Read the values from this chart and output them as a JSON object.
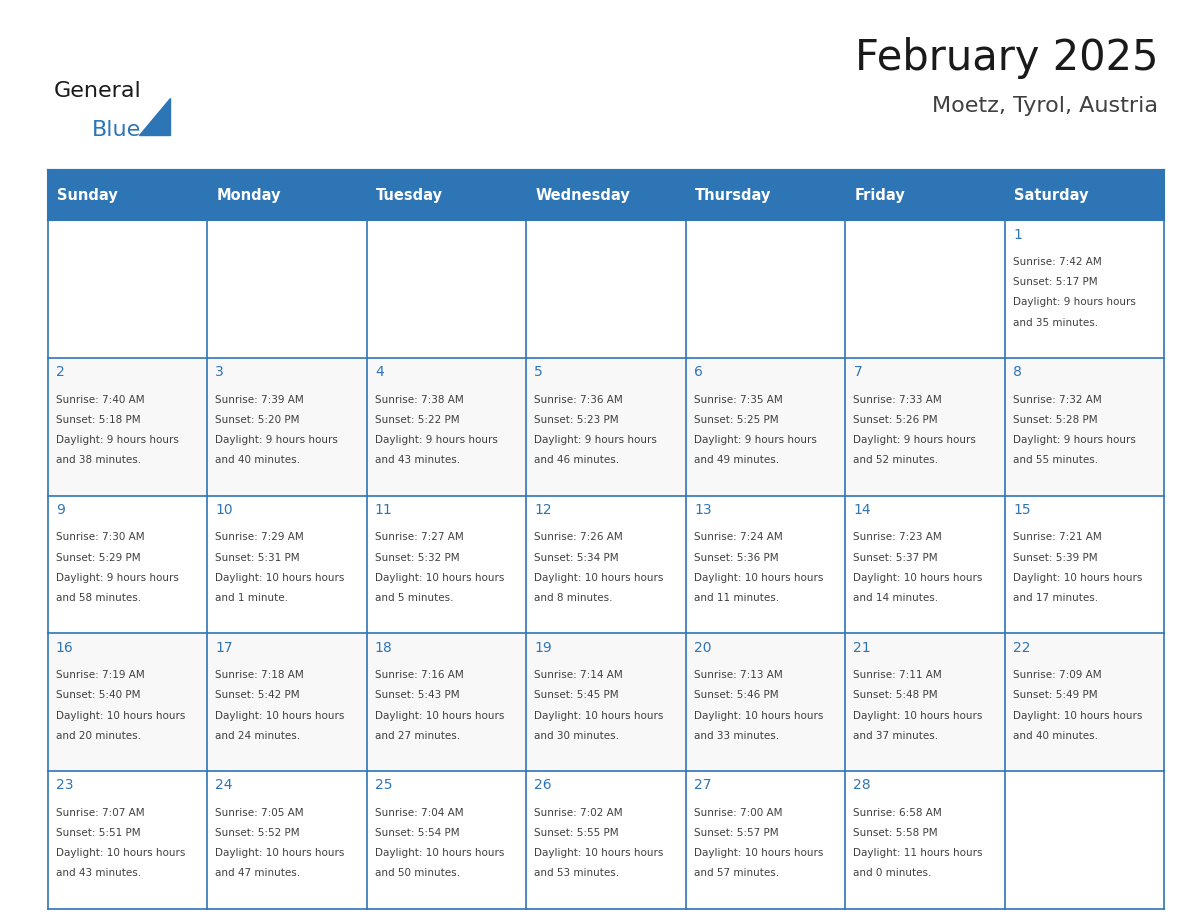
{
  "title": "February 2025",
  "subtitle": "Moetz, Tyrol, Austria",
  "header_bg": "#2E75B6",
  "header_text": "#FFFFFF",
  "cell_bg": "#FFFFFF",
  "alt_cell_bg": "#F2F2F2",
  "border_color": "#2E75B6",
  "text_color": "#404040",
  "day_number_color": "#2E75B6",
  "weekdays": [
    "Sunday",
    "Monday",
    "Tuesday",
    "Wednesday",
    "Thursday",
    "Friday",
    "Saturday"
  ],
  "logo_general_color": "#1a1a1a",
  "logo_blue_color": "#2E75B6",
  "days": [
    {
      "day": 1,
      "col": 6,
      "row": 0,
      "sunrise": "7:42 AM",
      "sunset": "5:17 PM",
      "daylight": "9 hours and 35 minutes."
    },
    {
      "day": 2,
      "col": 0,
      "row": 1,
      "sunrise": "7:40 AM",
      "sunset": "5:18 PM",
      "daylight": "9 hours and 38 minutes."
    },
    {
      "day": 3,
      "col": 1,
      "row": 1,
      "sunrise": "7:39 AM",
      "sunset": "5:20 PM",
      "daylight": "9 hours and 40 minutes."
    },
    {
      "day": 4,
      "col": 2,
      "row": 1,
      "sunrise": "7:38 AM",
      "sunset": "5:22 PM",
      "daylight": "9 hours and 43 minutes."
    },
    {
      "day": 5,
      "col": 3,
      "row": 1,
      "sunrise": "7:36 AM",
      "sunset": "5:23 PM",
      "daylight": "9 hours and 46 minutes."
    },
    {
      "day": 6,
      "col": 4,
      "row": 1,
      "sunrise": "7:35 AM",
      "sunset": "5:25 PM",
      "daylight": "9 hours and 49 minutes."
    },
    {
      "day": 7,
      "col": 5,
      "row": 1,
      "sunrise": "7:33 AM",
      "sunset": "5:26 PM",
      "daylight": "9 hours and 52 minutes."
    },
    {
      "day": 8,
      "col": 6,
      "row": 1,
      "sunrise": "7:32 AM",
      "sunset": "5:28 PM",
      "daylight": "9 hours and 55 minutes."
    },
    {
      "day": 9,
      "col": 0,
      "row": 2,
      "sunrise": "7:30 AM",
      "sunset": "5:29 PM",
      "daylight": "9 hours and 58 minutes."
    },
    {
      "day": 10,
      "col": 1,
      "row": 2,
      "sunrise": "7:29 AM",
      "sunset": "5:31 PM",
      "daylight": "10 hours and 1 minute."
    },
    {
      "day": 11,
      "col": 2,
      "row": 2,
      "sunrise": "7:27 AM",
      "sunset": "5:32 PM",
      "daylight": "10 hours and 5 minutes."
    },
    {
      "day": 12,
      "col": 3,
      "row": 2,
      "sunrise": "7:26 AM",
      "sunset": "5:34 PM",
      "daylight": "10 hours and 8 minutes."
    },
    {
      "day": 13,
      "col": 4,
      "row": 2,
      "sunrise": "7:24 AM",
      "sunset": "5:36 PM",
      "daylight": "10 hours and 11 minutes."
    },
    {
      "day": 14,
      "col": 5,
      "row": 2,
      "sunrise": "7:23 AM",
      "sunset": "5:37 PM",
      "daylight": "10 hours and 14 minutes."
    },
    {
      "day": 15,
      "col": 6,
      "row": 2,
      "sunrise": "7:21 AM",
      "sunset": "5:39 PM",
      "daylight": "10 hours and 17 minutes."
    },
    {
      "day": 16,
      "col": 0,
      "row": 3,
      "sunrise": "7:19 AM",
      "sunset": "5:40 PM",
      "daylight": "10 hours and 20 minutes."
    },
    {
      "day": 17,
      "col": 1,
      "row": 3,
      "sunrise": "7:18 AM",
      "sunset": "5:42 PM",
      "daylight": "10 hours and 24 minutes."
    },
    {
      "day": 18,
      "col": 2,
      "row": 3,
      "sunrise": "7:16 AM",
      "sunset": "5:43 PM",
      "daylight": "10 hours and 27 minutes."
    },
    {
      "day": 19,
      "col": 3,
      "row": 3,
      "sunrise": "7:14 AM",
      "sunset": "5:45 PM",
      "daylight": "10 hours and 30 minutes."
    },
    {
      "day": 20,
      "col": 4,
      "row": 3,
      "sunrise": "7:13 AM",
      "sunset": "5:46 PM",
      "daylight": "10 hours and 33 minutes."
    },
    {
      "day": 21,
      "col": 5,
      "row": 3,
      "sunrise": "7:11 AM",
      "sunset": "5:48 PM",
      "daylight": "10 hours and 37 minutes."
    },
    {
      "day": 22,
      "col": 6,
      "row": 3,
      "sunrise": "7:09 AM",
      "sunset": "5:49 PM",
      "daylight": "10 hours and 40 minutes."
    },
    {
      "day": 23,
      "col": 0,
      "row": 4,
      "sunrise": "7:07 AM",
      "sunset": "5:51 PM",
      "daylight": "10 hours and 43 minutes."
    },
    {
      "day": 24,
      "col": 1,
      "row": 4,
      "sunrise": "7:05 AM",
      "sunset": "5:52 PM",
      "daylight": "10 hours and 47 minutes."
    },
    {
      "day": 25,
      "col": 2,
      "row": 4,
      "sunrise": "7:04 AM",
      "sunset": "5:54 PM",
      "daylight": "10 hours and 50 minutes."
    },
    {
      "day": 26,
      "col": 3,
      "row": 4,
      "sunrise": "7:02 AM",
      "sunset": "5:55 PM",
      "daylight": "10 hours and 53 minutes."
    },
    {
      "day": 27,
      "col": 4,
      "row": 4,
      "sunrise": "7:00 AM",
      "sunset": "5:57 PM",
      "daylight": "10 hours and 57 minutes."
    },
    {
      "day": 28,
      "col": 5,
      "row": 4,
      "sunrise": "6:58 AM",
      "sunset": "5:58 PM",
      "daylight": "11 hours and 0 minutes."
    }
  ]
}
